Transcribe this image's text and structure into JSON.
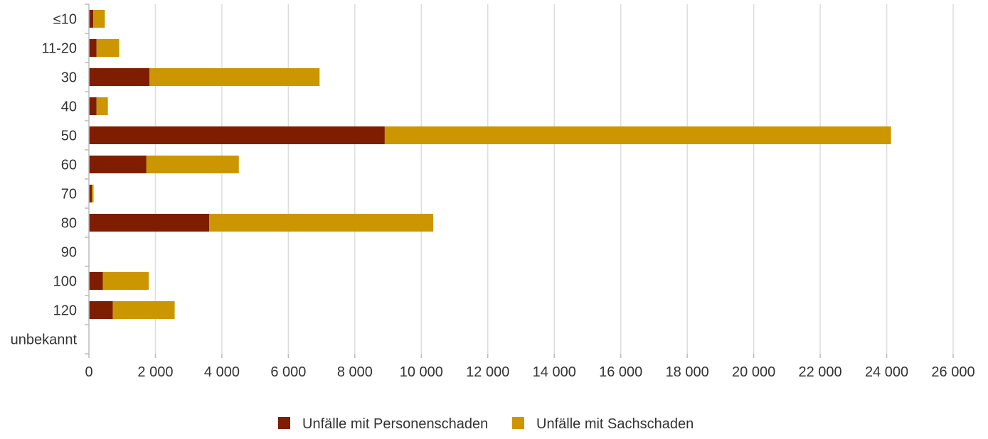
{
  "chart_data": {
    "type": "bar",
    "orientation": "horizontal",
    "stacked": true,
    "categories": [
      "≤10",
      "11-20",
      "30",
      "40",
      "50",
      "60",
      "70",
      "80",
      "90",
      "100",
      "120",
      "unbekannt"
    ],
    "series": [
      {
        "name": "Unfälle mit Personenschaden",
        "color": "#7f1d00",
        "values": [
          130,
          230,
          1820,
          230,
          8900,
          1730,
          90,
          3620,
          0,
          420,
          720,
          0
        ]
      },
      {
        "name": "Unfälle mit Sachschaden",
        "color": "#cc9600",
        "values": [
          350,
          680,
          5120,
          340,
          15230,
          2780,
          50,
          6740,
          0,
          1380,
          1860,
          0
        ]
      }
    ],
    "xlim": [
      0,
      26000
    ],
    "x_ticks": [
      0,
      2000,
      4000,
      6000,
      8000,
      10000,
      12000,
      14000,
      16000,
      18000,
      20000,
      22000,
      24000,
      26000
    ],
    "x_tick_labels": [
      "0",
      "2 000",
      "4 000",
      "6 000",
      "8 000",
      "10 000",
      "12 000",
      "14 000",
      "16 000",
      "18 000",
      "20 000",
      "22 000",
      "24 000",
      "26 000"
    ],
    "grid": "vertical",
    "legend_position": "bottom-center"
  }
}
